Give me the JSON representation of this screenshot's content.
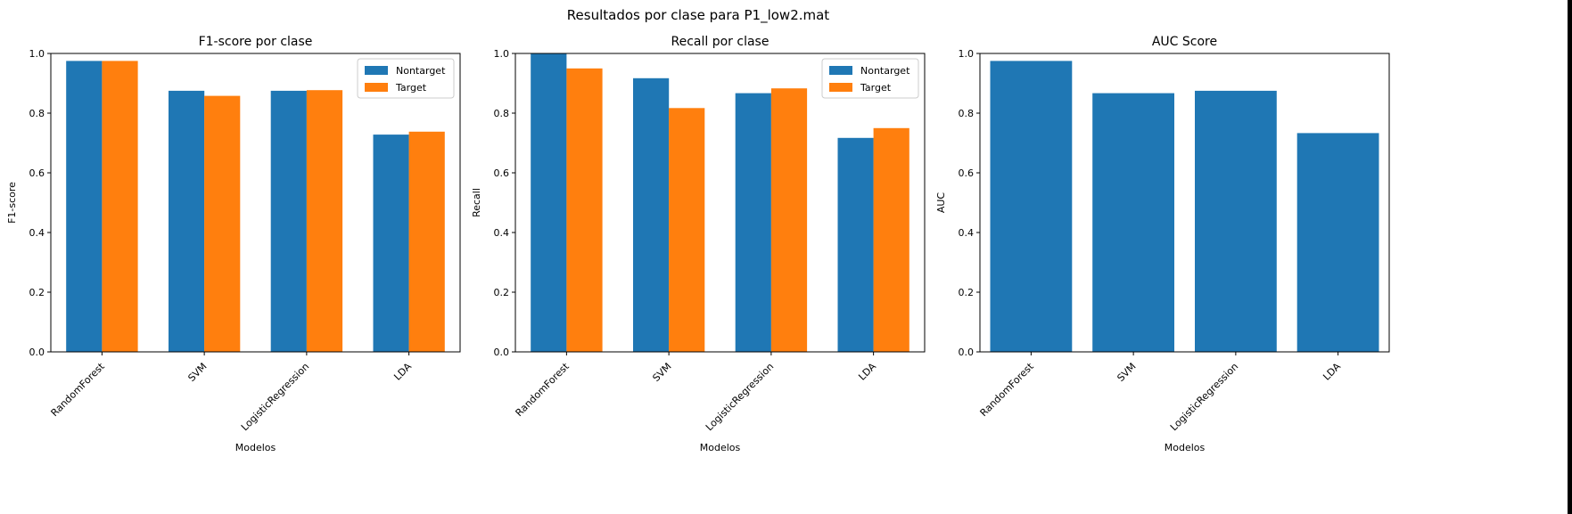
{
  "suptitle": "Resultados por clase para P1_low2.mat",
  "colors": {
    "nontarget": "#1f77b4",
    "target": "#ff7f0e",
    "auc": "#1f77b4"
  },
  "chart_data": [
    {
      "type": "bar",
      "title": "F1-score por clase",
      "xlabel": "Modelos",
      "ylabel": "F1-score",
      "ylim": [
        0,
        1.0
      ],
      "yticks": [
        "0.0",
        "0.2",
        "0.4",
        "0.6",
        "0.8",
        "1.0"
      ],
      "categories": [
        "RandomForest",
        "SVM",
        "LogisticRegression",
        "LDA"
      ],
      "series": [
        {
          "name": "Nontarget",
          "values": [
            0.975,
            0.875,
            0.875,
            0.728
          ]
        },
        {
          "name": "Target",
          "values": [
            0.975,
            0.858,
            0.877,
            0.738
          ]
        }
      ],
      "legend": "top-right",
      "grid": false
    },
    {
      "type": "bar",
      "title": "Recall por clase",
      "xlabel": "Modelos",
      "ylabel": "Recall",
      "ylim": [
        0,
        1.0
      ],
      "yticks": [
        "0.0",
        "0.2",
        "0.4",
        "0.6",
        "0.8",
        "1.0"
      ],
      "categories": [
        "RandomForest",
        "SVM",
        "LogisticRegression",
        "LDA"
      ],
      "series": [
        {
          "name": "Nontarget",
          "values": [
            1.0,
            0.917,
            0.867,
            0.717
          ]
        },
        {
          "name": "Target",
          "values": [
            0.95,
            0.817,
            0.883,
            0.75
          ]
        }
      ],
      "legend": "top-right",
      "grid": false
    },
    {
      "type": "bar",
      "title": "AUC Score",
      "xlabel": "Modelos",
      "ylabel": "AUC",
      "ylim": [
        0,
        1.0
      ],
      "yticks": [
        "0.0",
        "0.2",
        "0.4",
        "0.6",
        "0.8",
        "1.0"
      ],
      "categories": [
        "RandomForest",
        "SVM",
        "LogisticRegression",
        "LDA"
      ],
      "series": [
        {
          "values": [
            0.975,
            0.867,
            0.875,
            0.733
          ]
        }
      ],
      "grid": false
    }
  ]
}
